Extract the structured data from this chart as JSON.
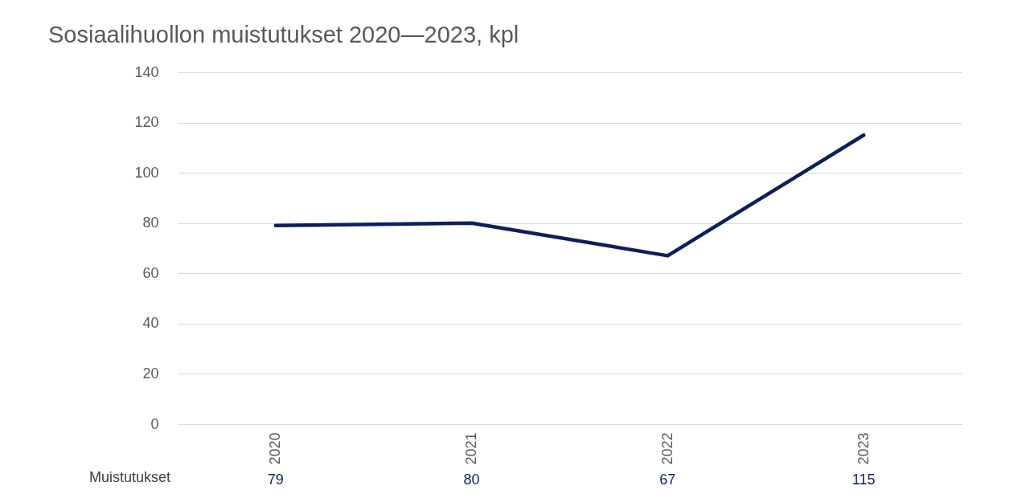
{
  "chart_data": {
    "type": "line",
    "title": "Sosiaalihuollon muistutukset 2020—2023, kpl",
    "categories": [
      "2020",
      "2021",
      "2022",
      "2023"
    ],
    "series": [
      {
        "name": "Muistutukset",
        "color": "#0b1f5c",
        "values": [
          79,
          80,
          67,
          115
        ]
      }
    ],
    "ylim": [
      0,
      140
    ],
    "yticks": [
      0,
      20,
      40,
      60,
      80,
      100,
      120,
      140
    ],
    "grid": "y",
    "legend": "bottom left",
    "data_labels": true,
    "marker": "none",
    "line_style": "solid"
  }
}
